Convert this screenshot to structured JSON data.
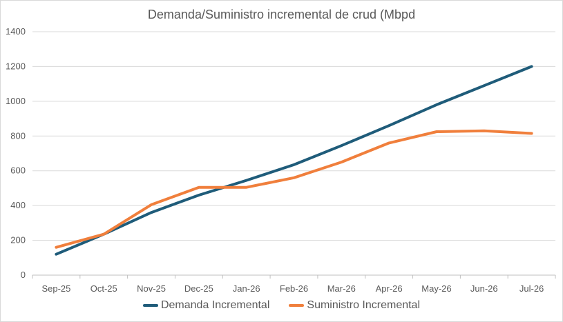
{
  "chart_data": {
    "type": "line",
    "title": "Demanda/Suministro incremental de crud (Mbpd",
    "categories": [
      "Sep-25",
      "Oct-25",
      "Nov-25",
      "Dec-25",
      "Jan-26",
      "Feb-26",
      "Mar-26",
      "Apr-26",
      "May-26",
      "Jun-26",
      "Jul-26"
    ],
    "ylim": [
      0,
      1400
    ],
    "yticks": [
      0,
      200,
      400,
      600,
      800,
      1000,
      1200,
      1400
    ],
    "grid": true,
    "legend_position": "bottom",
    "series": [
      {
        "name": "Demanda Incremental",
        "color": "#1f5c7a",
        "values": [
          120,
          235,
          360,
          460,
          545,
          635,
          745,
          860,
          980,
          1090,
          1200
        ]
      },
      {
        "name": "Suministro Incremental",
        "color": "#f07f3c",
        "values": [
          160,
          235,
          405,
          505,
          505,
          560,
          650,
          760,
          825,
          830,
          815
        ]
      }
    ]
  }
}
